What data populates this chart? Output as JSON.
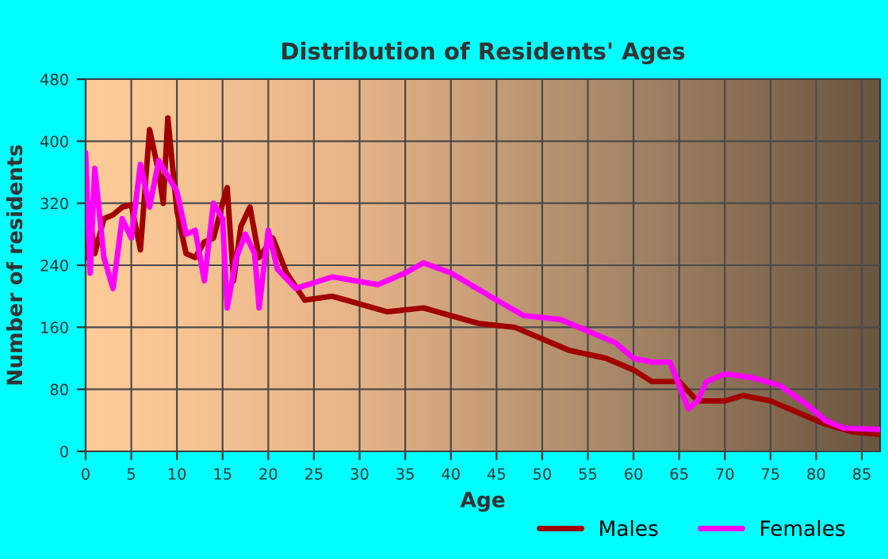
{
  "chart_data": {
    "type": "line",
    "title": "Distribution of Residents' Ages",
    "xlabel": "Age",
    "ylabel": "Number of residents",
    "xlim": [
      0,
      87
    ],
    "ylim": [
      0,
      480
    ],
    "xticks": [
      0,
      5,
      10,
      15,
      20,
      25,
      30,
      35,
      40,
      45,
      50,
      55,
      60,
      65,
      70,
      75,
      80,
      85
    ],
    "yticks": [
      0,
      80,
      160,
      240,
      320,
      400,
      480
    ],
    "grid": true,
    "legend": "bottom",
    "series": [
      {
        "name": "Males",
        "color": "#a00000",
        "x": [
          0,
          0.5,
          1,
          2,
          3,
          4,
          5,
          6,
          7,
          8,
          8.5,
          9,
          10,
          11,
          12,
          13,
          14,
          15,
          15.5,
          16.2,
          17,
          18,
          19,
          20.5,
          22,
          24,
          27,
          30,
          33,
          37,
          40,
          43,
          47,
          50,
          53,
          57,
          60,
          62,
          65,
          67,
          70,
          72,
          75,
          78,
          81,
          84,
          87
        ],
        "values": [
          250,
          300,
          255,
          300,
          305,
          315,
          318,
          260,
          415,
          360,
          320,
          430,
          310,
          255,
          250,
          270,
          275,
          320,
          340,
          220,
          290,
          315,
          250,
          275,
          230,
          195,
          200,
          190,
          180,
          185,
          175,
          165,
          160,
          145,
          130,
          120,
          105,
          90,
          90,
          65,
          65,
          72,
          65,
          50,
          35,
          25,
          22
        ]
      },
      {
        "name": "Females",
        "color": "#ff00ff",
        "x": [
          0,
          0.5,
          1,
          2,
          3,
          4,
          5,
          6,
          7,
          8,
          9,
          10,
          11,
          12,
          13,
          14,
          15,
          15.5,
          16.5,
          17.5,
          18.5,
          19,
          20,
          21,
          23,
          27,
          32,
          35,
          37,
          40,
          45,
          48,
          52,
          55,
          58,
          60,
          62,
          64,
          66,
          67,
          68,
          70,
          73,
          76,
          79,
          81,
          83,
          87
        ],
        "values": [
          385,
          230,
          365,
          250,
          210,
          300,
          275,
          370,
          315,
          375,
          355,
          335,
          280,
          285,
          220,
          320,
          300,
          185,
          250,
          280,
          255,
          185,
          285,
          235,
          210,
          225,
          215,
          230,
          243,
          230,
          195,
          175,
          170,
          155,
          140,
          120,
          115,
          115,
          55,
          65,
          90,
          100,
          95,
          85,
          60,
          40,
          30,
          28
        ]
      }
    ]
  }
}
